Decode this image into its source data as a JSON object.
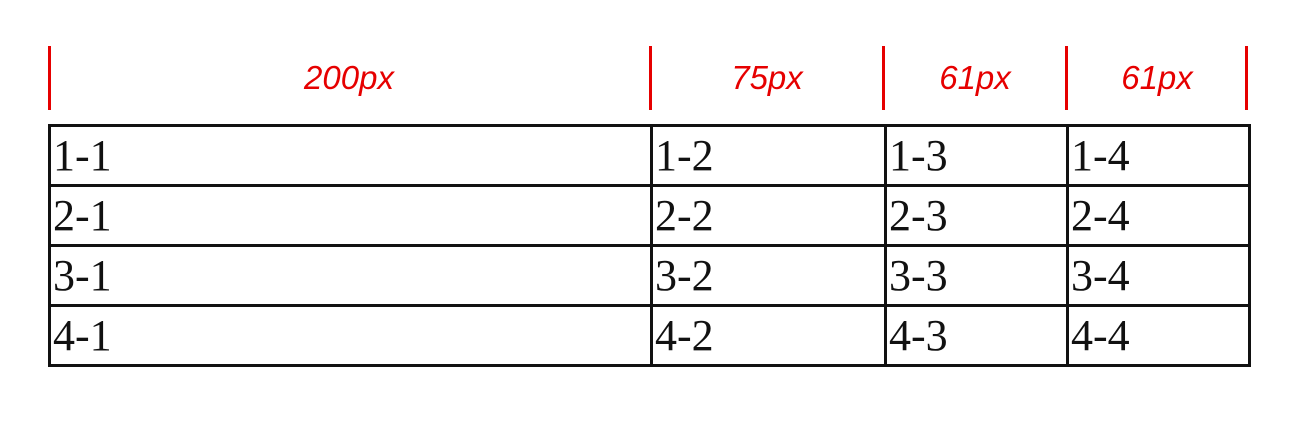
{
  "ruler": {
    "labels": [
      "200px",
      "75px",
      "61px",
      "61px"
    ],
    "color": "#e60000"
  },
  "table": {
    "border_color": "#111111",
    "rows": [
      [
        "1-1",
        "1-2",
        "1-3",
        "1-4"
      ],
      [
        "2-1",
        "2-2",
        "2-3",
        "2-4"
      ],
      [
        "3-1",
        "3-2",
        "3-3",
        "3-4"
      ],
      [
        "4-1",
        "4-2",
        "4-3",
        "4-4"
      ]
    ]
  }
}
